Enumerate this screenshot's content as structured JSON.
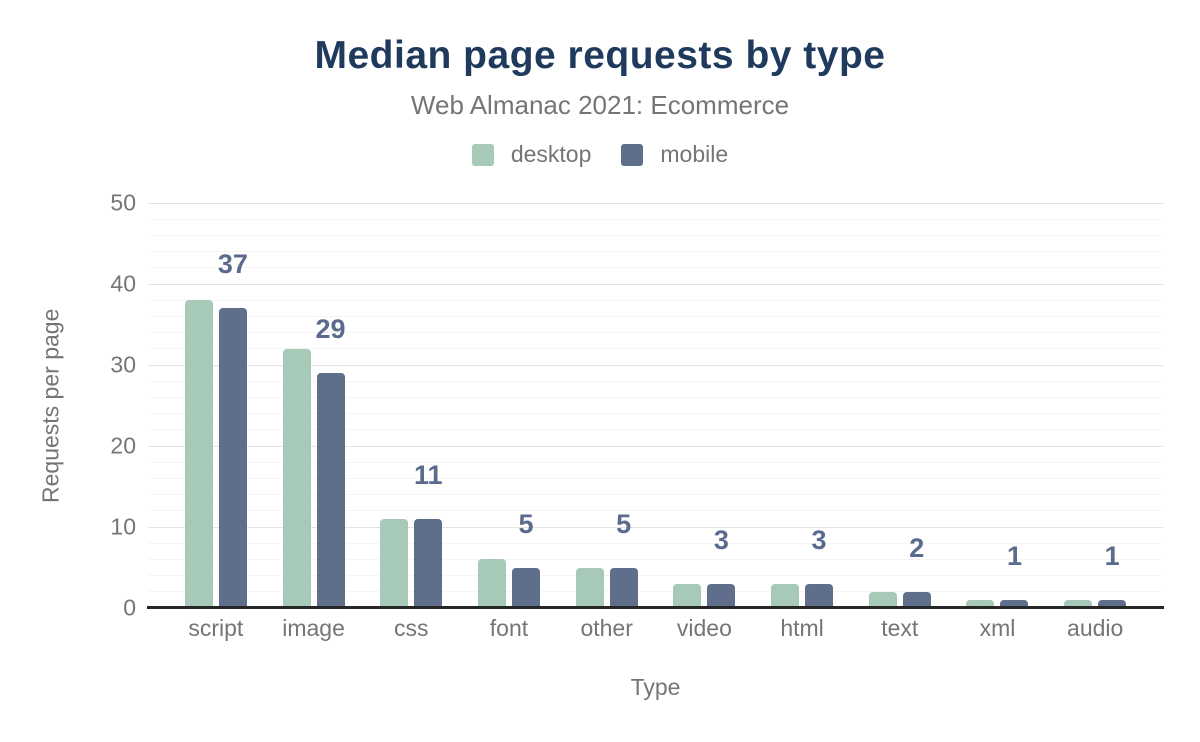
{
  "header": {
    "title": "Median page requests by type",
    "subtitle": "Web Almanac 2021: Ecommerce"
  },
  "chart_data": {
    "type": "bar",
    "title": "Median page requests by type",
    "subtitle": "Web Almanac 2021: Ecommerce",
    "categories": [
      "script",
      "image",
      "css",
      "font",
      "other",
      "video",
      "html",
      "text",
      "xml",
      "audio"
    ],
    "series": [
      {
        "name": "desktop",
        "color": "#a7c9b7",
        "values": [
          38,
          32,
          11,
          6,
          5,
          3,
          3,
          2,
          1,
          1
        ]
      },
      {
        "name": "mobile",
        "color": "#5f6e8b",
        "values": [
          37,
          29,
          11,
          5,
          5,
          3,
          3,
          2,
          1,
          1
        ]
      }
    ],
    "data_labels": {
      "series": "mobile",
      "values": [
        37,
        29,
        11,
        5,
        5,
        3,
        3,
        2,
        1,
        1
      ]
    },
    "xlabel": "Type",
    "ylabel": "Requests per page",
    "ylim": [
      0,
      50
    ],
    "yticks": [
      0,
      10,
      20,
      30,
      40,
      50
    ],
    "minor_grid_step": 2,
    "grid": true,
    "legend_position": "top"
  },
  "colors": {
    "background": "#ffffff",
    "title": "#1f3a5c",
    "muted_text": "#757575",
    "data_label": "#5b6b8e",
    "axis_line": "#262626",
    "grid_major": "#e3e3e3",
    "grid_minor": "#f5f5f5"
  }
}
